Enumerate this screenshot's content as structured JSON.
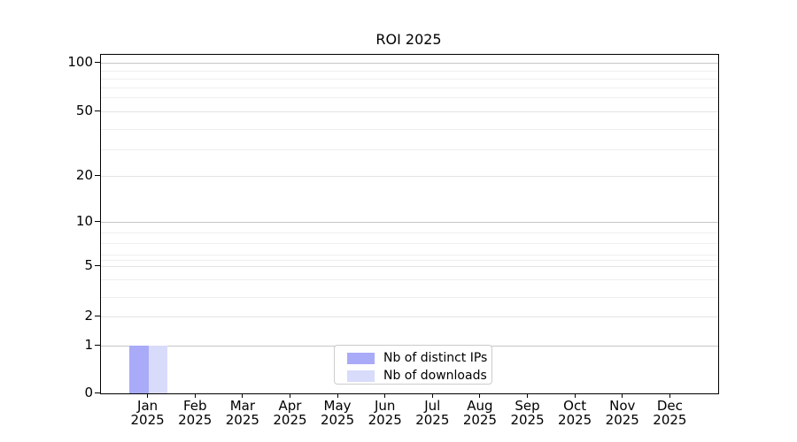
{
  "chart_data": {
    "type": "bar",
    "title": "ROI 2025",
    "categories": [
      "Jan 2025",
      "Feb 2025",
      "Mar 2025",
      "Apr 2025",
      "May 2025",
      "Jun 2025",
      "Jul 2025",
      "Aug 2025",
      "Sep 2025",
      "Oct 2025",
      "Nov 2025",
      "Dec 2025"
    ],
    "series": [
      {
        "name": "Nb of distinct IPs",
        "color": "#a9aaf8",
        "values": [
          1,
          0,
          0,
          0,
          0,
          0,
          0,
          0,
          0,
          0,
          0,
          0
        ]
      },
      {
        "name": "Nb of downloads",
        "color": "#d9dbfa",
        "values": [
          1,
          0,
          0,
          0,
          0,
          0,
          0,
          0,
          0,
          0,
          0,
          0
        ]
      }
    ],
    "y_axis": {
      "ticks": [
        0,
        1,
        2,
        5,
        10,
        20,
        50,
        100
      ],
      "scale": "log-like with linear segment 0-1",
      "range": [
        0,
        100
      ],
      "grid": "on"
    },
    "x_axis": {
      "grid": "off"
    },
    "legend": {
      "position": "lower center"
    }
  }
}
